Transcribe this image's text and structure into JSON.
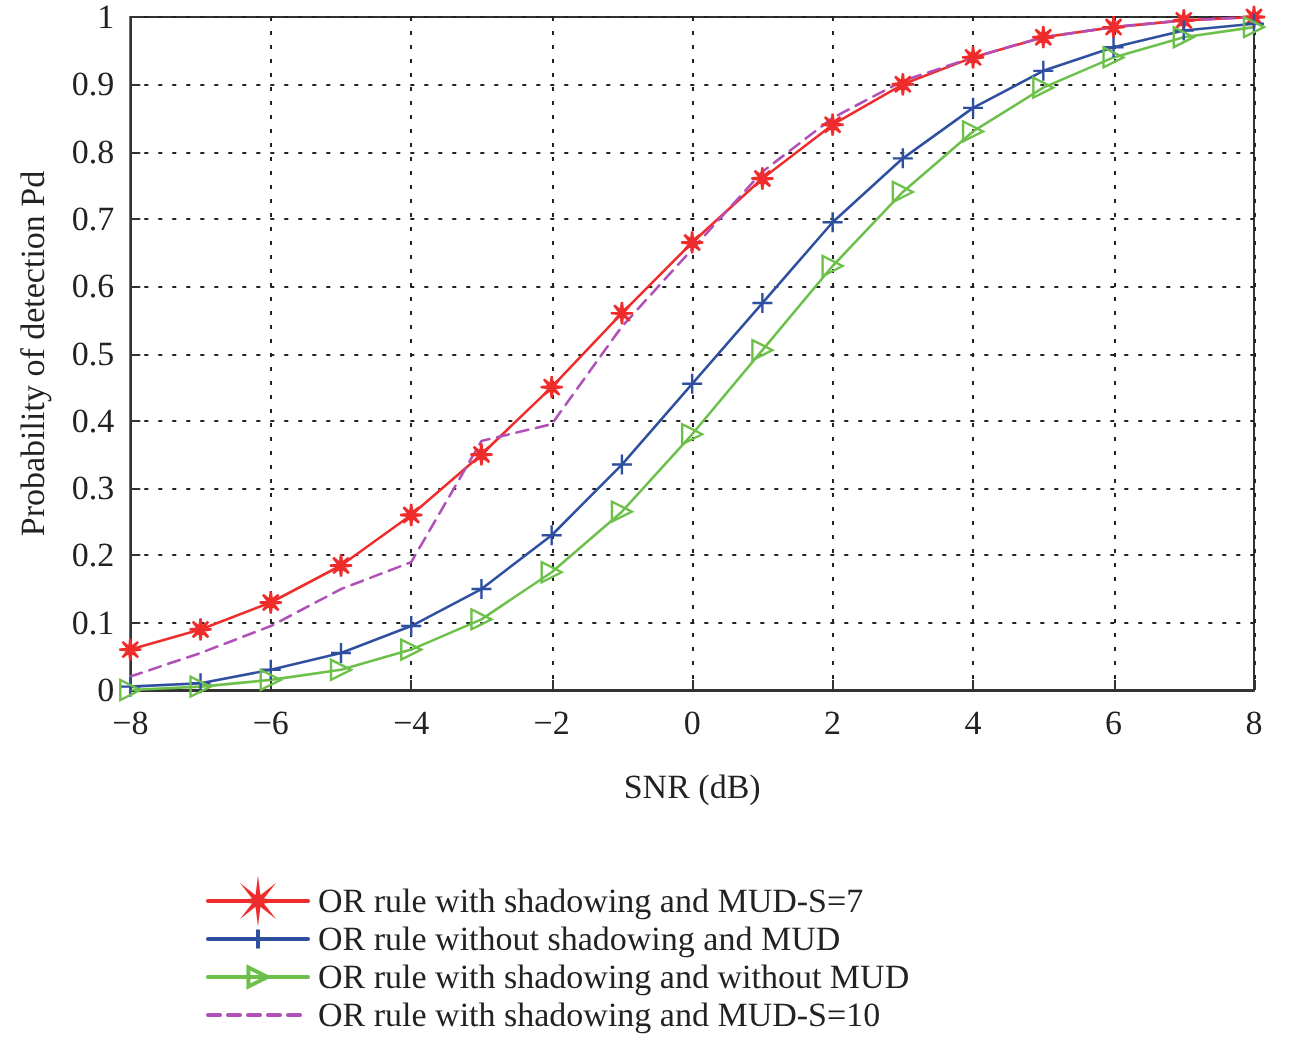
{
  "chart_data": {
    "type": "line",
    "xlabel": "SNR (dB)",
    "ylabel": "Probability of detection Pd",
    "x": [
      -8,
      -7,
      -6,
      -5,
      -4,
      -3,
      -2,
      -1,
      0,
      1,
      2,
      3,
      4,
      5,
      6,
      7,
      8
    ],
    "series": [
      {
        "name": "OR rule with shadowing and MUD-S=7",
        "color": "#ee2c2c",
        "marker": "star",
        "line_style": "solid",
        "values": [
          0.06,
          0.09,
          0.13,
          0.185,
          0.26,
          0.35,
          0.45,
          0.56,
          0.665,
          0.76,
          0.84,
          0.9,
          0.94,
          0.97,
          0.985,
          0.995,
          1.0
        ]
      },
      {
        "name": "OR rule without shadowing and MUD",
        "color": "#2e4fa0",
        "marker": "cross",
        "line_style": "solid",
        "values": [
          0.005,
          0.01,
          0.03,
          0.055,
          0.095,
          0.15,
          0.23,
          0.335,
          0.455,
          0.575,
          0.695,
          0.79,
          0.865,
          0.92,
          0.955,
          0.98,
          0.99
        ]
      },
      {
        "name": "OR rule with shadowing and without MUD",
        "color": "#6cc04a",
        "marker": "triangle",
        "line_style": "solid",
        "values": [
          0,
          0.005,
          0.015,
          0.03,
          0.06,
          0.105,
          0.175,
          0.265,
          0.38,
          0.505,
          0.63,
          0.74,
          0.83,
          0.895,
          0.94,
          0.97,
          0.985
        ]
      },
      {
        "name": "OR rule with shadowing and MUD-S=10",
        "color": "#b04fb8",
        "marker": "none",
        "line_style": "dashed",
        "values": [
          0.02,
          0.055,
          0.095,
          0.15,
          0.19,
          0.37,
          0.395,
          0.54,
          0.655,
          0.77,
          0.85,
          0.905,
          0.94,
          0.97,
          0.985,
          0.995,
          1.0
        ]
      }
    ],
    "xlim": [
      -8,
      8
    ],
    "xticks": [
      -8,
      -6,
      -4,
      -2,
      0,
      2,
      4,
      6,
      8
    ],
    "ylim": [
      0,
      1
    ],
    "yticks": [
      0,
      0.1,
      0.2,
      0.3,
      0.4,
      0.5,
      0.6,
      0.7,
      0.8,
      0.9,
      1
    ],
    "grid": true,
    "legend": "bottom"
  }
}
